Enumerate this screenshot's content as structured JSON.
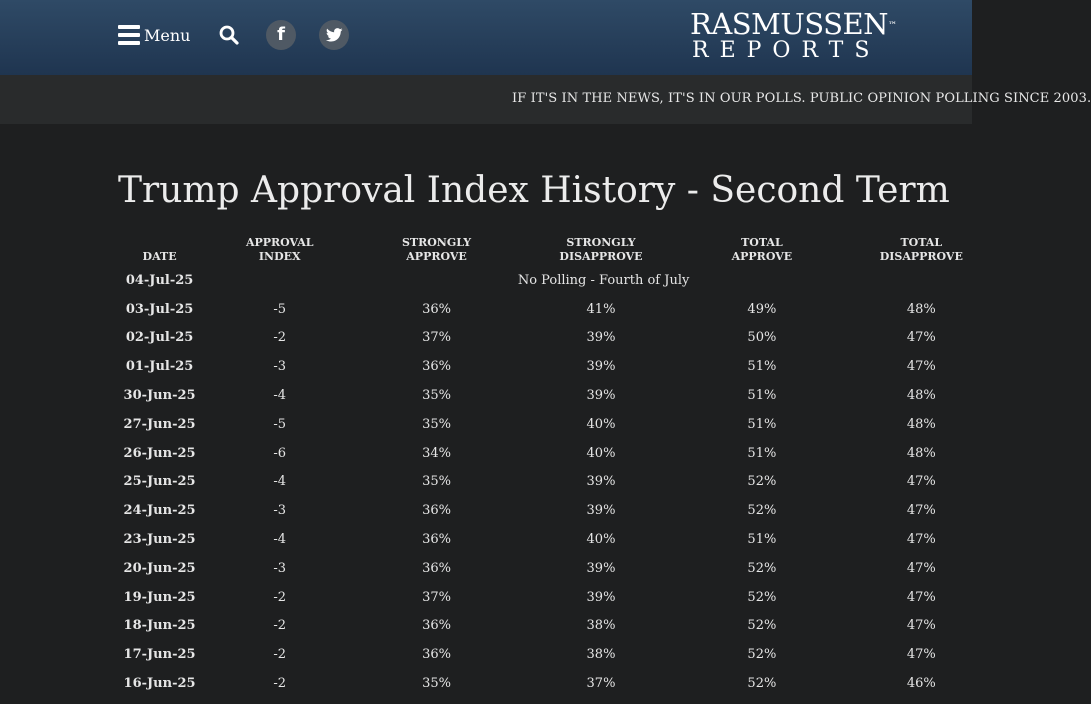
{
  "header": {
    "menu_label": "Menu",
    "logo_top": "RASMUSSEN",
    "logo_tm": "™",
    "logo_bottom": "REPORTS"
  },
  "ticker": {
    "text": "IF IT'S IN THE NEWS, IT'S IN OUR POLLS. PUBLIC OPINION POLLING SINCE 2003."
  },
  "page": {
    "title": "Trump Approval Index History - Second Term"
  },
  "table": {
    "columns": [
      {
        "line1": "",
        "line2": "DATE"
      },
      {
        "line1": "APPROVAL",
        "line2": "INDEX"
      },
      {
        "line1": "STRONGLY",
        "line2": "APPROVE"
      },
      {
        "line1": "STRONGLY",
        "line2": "DISAPPROVE"
      },
      {
        "line1": "TOTAL",
        "line2": "APPROVE"
      },
      {
        "line1": "TOTAL",
        "line2": "DISAPPROVE"
      }
    ],
    "note_row": {
      "date": "04-Jul-25",
      "note": "No Polling - Fourth of July"
    },
    "rows": [
      {
        "date": "03-Jul-25",
        "index": "-5",
        "strongly_approve": "36%",
        "strongly_disapprove": "41%",
        "total_approve": "49%",
        "total_disapprove": "48%"
      },
      {
        "date": "02-Jul-25",
        "index": "-2",
        "strongly_approve": "37%",
        "strongly_disapprove": "39%",
        "total_approve": "50%",
        "total_disapprove": "47%"
      },
      {
        "date": "01-Jul-25",
        "index": "-3",
        "strongly_approve": "36%",
        "strongly_disapprove": "39%",
        "total_approve": "51%",
        "total_disapprove": "47%"
      },
      {
        "date": "30-Jun-25",
        "index": "-4",
        "strongly_approve": "35%",
        "strongly_disapprove": "39%",
        "total_approve": "51%",
        "total_disapprove": "48%"
      },
      {
        "date": "27-Jun-25",
        "index": "-5",
        "strongly_approve": "35%",
        "strongly_disapprove": "40%",
        "total_approve": "51%",
        "total_disapprove": "48%"
      },
      {
        "date": "26-Jun-25",
        "index": "-6",
        "strongly_approve": "34%",
        "strongly_disapprove": "40%",
        "total_approve": "51%",
        "total_disapprove": "48%"
      },
      {
        "date": "25-Jun-25",
        "index": "-4",
        "strongly_approve": "35%",
        "strongly_disapprove": "39%",
        "total_approve": "52%",
        "total_disapprove": "47%"
      },
      {
        "date": "24-Jun-25",
        "index": "-3",
        "strongly_approve": "36%",
        "strongly_disapprove": "39%",
        "total_approve": "52%",
        "total_disapprove": "47%"
      },
      {
        "date": "23-Jun-25",
        "index": "-4",
        "strongly_approve": "36%",
        "strongly_disapprove": "40%",
        "total_approve": "51%",
        "total_disapprove": "47%"
      },
      {
        "date": "20-Jun-25",
        "index": "-3",
        "strongly_approve": "36%",
        "strongly_disapprove": "39%",
        "total_approve": "52%",
        "total_disapprove": "47%"
      },
      {
        "date": "19-Jun-25",
        "index": "-2",
        "strongly_approve": "37%",
        "strongly_disapprove": "39%",
        "total_approve": "52%",
        "total_disapprove": "47%"
      },
      {
        "date": "18-Jun-25",
        "index": "-2",
        "strongly_approve": "36%",
        "strongly_disapprove": "38%",
        "total_approve": "52%",
        "total_disapprove": "47%"
      },
      {
        "date": "17-Jun-25",
        "index": "-2",
        "strongly_approve": "36%",
        "strongly_disapprove": "38%",
        "total_approve": "52%",
        "total_disapprove": "47%"
      },
      {
        "date": "16-Jun-25",
        "index": "-2",
        "strongly_approve": "35%",
        "strongly_disapprove": "37%",
        "total_approve": "52%",
        "total_disapprove": "46%"
      }
    ]
  },
  "icons": {
    "menu": "hamburger-icon",
    "search": "search-icon",
    "facebook": "facebook-icon",
    "twitter": "twitter-icon"
  },
  "colors": {
    "header_gradient_top": "#2f4a66",
    "header_gradient_bottom": "#1f3550",
    "ticker_bg": "#292b2c",
    "page_bg": "#1e1f20",
    "social_circle": "#4f5964"
  }
}
